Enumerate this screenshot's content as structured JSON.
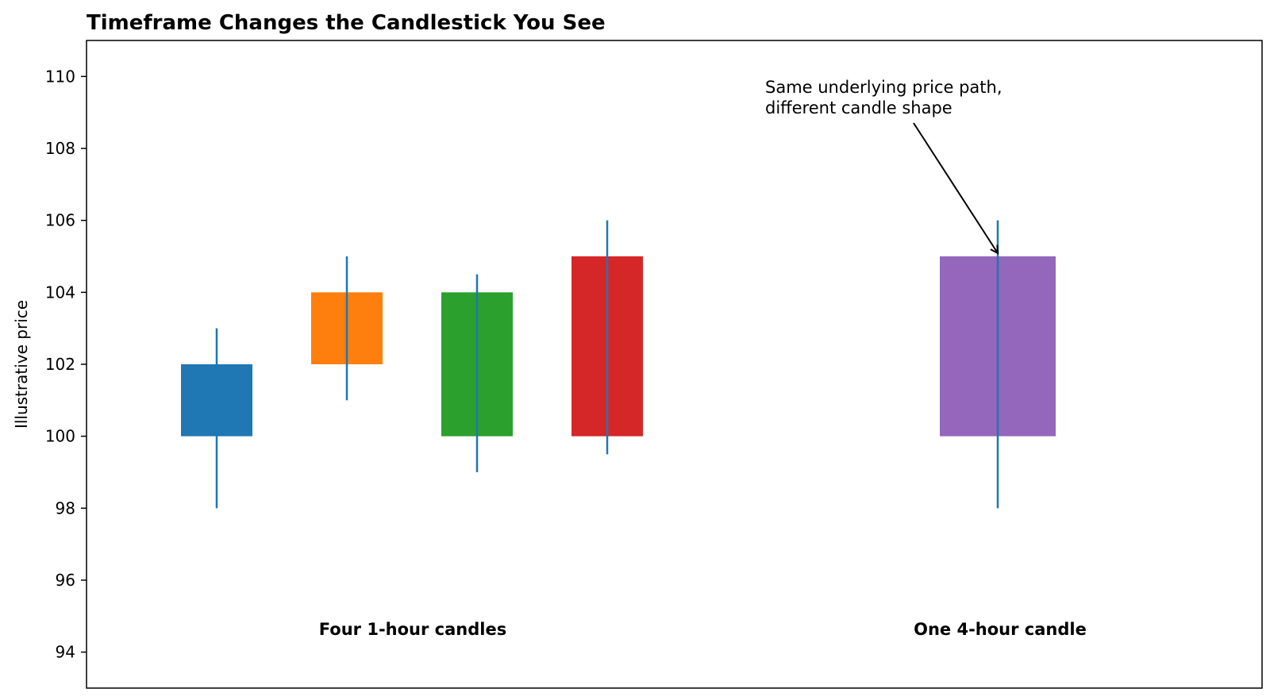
{
  "chart_data": {
    "type": "candlestick",
    "title": "Timeframe Changes the Candlestick You See",
    "xlabel": "",
    "ylabel": "Illustrative price",
    "ylim": [
      93,
      111
    ],
    "yticks": [
      94,
      96,
      98,
      100,
      102,
      104,
      106,
      108,
      110
    ],
    "grid": false,
    "legend": null,
    "wick_color": "#1f77b4",
    "groups": [
      {
        "label": "Four 1-hour candles"
      },
      {
        "label": "One 4-hour candle"
      }
    ],
    "candles": [
      {
        "group": 0,
        "body_low": 100,
        "body_high": 102,
        "low": 98,
        "high": 103,
        "color": "#1f77b4"
      },
      {
        "group": 0,
        "body_low": 102,
        "body_high": 104,
        "low": 101,
        "high": 105,
        "color": "#ff7f0e"
      },
      {
        "group": 0,
        "body_low": 100,
        "body_high": 104,
        "low": 99,
        "high": 104.5,
        "color": "#2ca02c"
      },
      {
        "group": 0,
        "body_low": 100,
        "body_high": 105,
        "low": 99.5,
        "high": 106,
        "color": "#d62728"
      },
      {
        "group": 1,
        "body_low": 100,
        "body_high": 105,
        "low": 98,
        "high": 106,
        "color": "#9467bd"
      }
    ],
    "annotation": {
      "lines": [
        "Same underlying price path,",
        "different candle shape"
      ],
      "target_candle": 4,
      "target_value": 105
    }
  }
}
